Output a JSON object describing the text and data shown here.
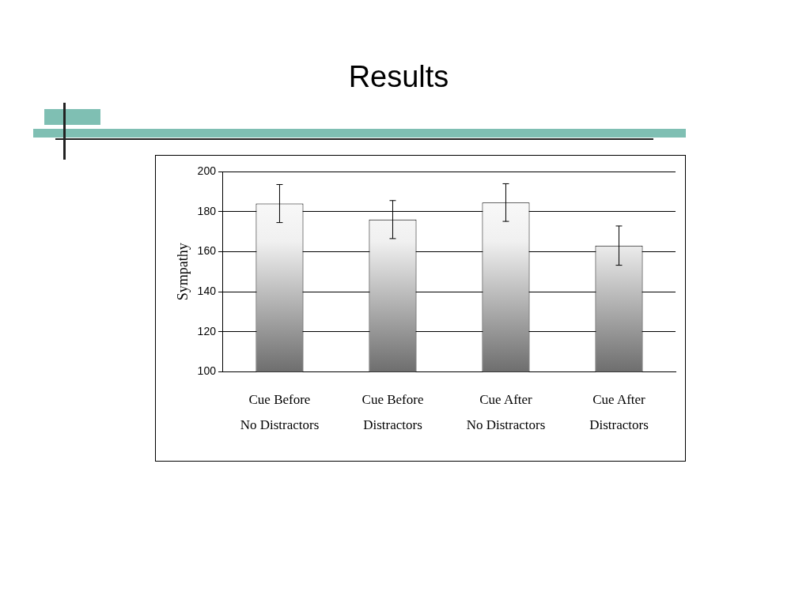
{
  "chart_data": {
    "type": "bar",
    "title": "Results",
    "ylabel": "Sympathy",
    "categories": [
      "Cue Before\nNo Distractors",
      "Cue Before\nDistractors",
      "Cue After\nNo Distractors",
      "Cue After\nDistractors"
    ],
    "values": [
      184,
      176,
      184.5,
      163
    ],
    "errors": [
      9.5,
      9.5,
      9.4,
      9.8
    ],
    "color": "#6e6e6e",
    "ylim": [
      100,
      200
    ],
    "yticks": [
      100,
      120,
      140,
      160,
      180,
      200
    ],
    "grid": "y",
    "legend": false
  }
}
